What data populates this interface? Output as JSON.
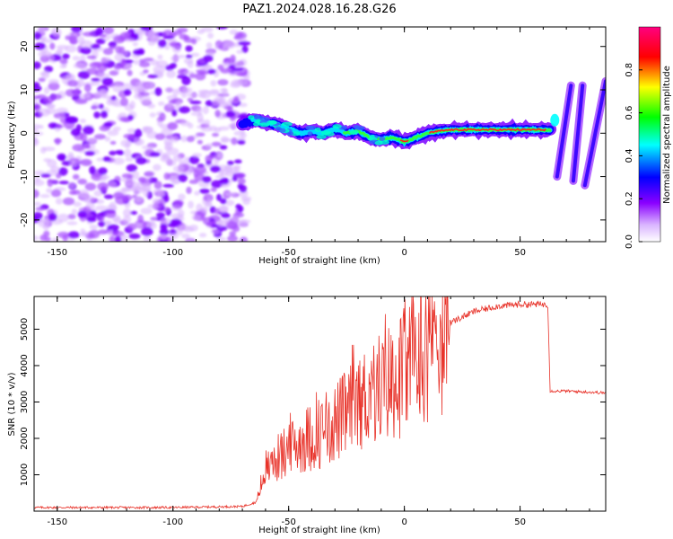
{
  "title": "PAZ1.2024.028.16.28.G26",
  "chart_data": [
    {
      "type": "heatmap",
      "xlabel": "Height of straight line (km)",
      "ylabel": "Frequency (Hz)",
      "xlim": [
        -160,
        87
      ],
      "ylim": [
        -25,
        24.5
      ],
      "xticks": [
        -150,
        -100,
        -50,
        0,
        50
      ],
      "yticks": [
        -20,
        -10,
        0,
        10,
        20
      ],
      "colorbar": {
        "label": "Normalized spectral amplitude",
        "ticks": [
          "0.0",
          "0.2",
          "0.4",
          "0.6",
          "0.8"
        ],
        "range": [
          0,
          1
        ],
        "colormap": [
          "#ffffff",
          "#8a00ff",
          "#0000ff",
          "#00ffff",
          "#00ff00",
          "#ffff00",
          "#ff0000",
          "#ff0080"
        ]
      },
      "ridge": {
        "description_x": [
          -70,
          -65,
          -60,
          -55,
          -50,
          -45,
          -40,
          -35,
          -30,
          -25,
          -20,
          -15,
          -10,
          -5,
          0,
          5,
          10,
          15,
          20,
          30,
          40,
          50,
          60,
          63
        ],
        "frequency": [
          2,
          3,
          2.5,
          2,
          1,
          0,
          0.5,
          0,
          1,
          0,
          0.5,
          -1,
          -1.5,
          -1,
          -2,
          -1,
          0,
          0.5,
          0.8,
          0.8,
          0.8,
          0.8,
          0.8,
          0.8
        ],
        "amplitude": [
          0.25,
          0.4,
          0.45,
          0.55,
          0.5,
          0.5,
          0.45,
          0.45,
          0.5,
          0.6,
          0.65,
          0.7,
          0.75,
          0.7,
          0.8,
          0.7,
          0.75,
          0.85,
          0.95,
          0.95,
          0.9,
          0.85,
          0.8,
          0.7
        ]
      },
      "noise_region_x": [
        -160,
        -70
      ]
    },
    {
      "type": "line",
      "xlabel": "Height of straight line (km)",
      "ylabel": "SNR (10 * v/v)",
      "xlim": [
        -160,
        87
      ],
      "ylim": [
        0,
        5900
      ],
      "xticks": [
        -150,
        -100,
        -50,
        0,
        50
      ],
      "yticks": [
        1000,
        2000,
        3000,
        4000,
        5000
      ],
      "color": "#e8332a",
      "envelope": {
        "x": [
          -160,
          -100,
          -70,
          -64,
          -60,
          -55,
          -45,
          -35,
          -25,
          -15,
          -5,
          0,
          5,
          10,
          15,
          20,
          30,
          40,
          50,
          62,
          63,
          70,
          87
        ],
        "y": [
          100,
          100,
          130,
          250,
          1200,
          1500,
          2000,
          2300,
          2800,
          3400,
          3800,
          4000,
          4500,
          4800,
          5000,
          5200,
          5500,
          5650,
          5700,
          5700,
          3300,
          3300,
          3250
        ]
      }
    }
  ]
}
